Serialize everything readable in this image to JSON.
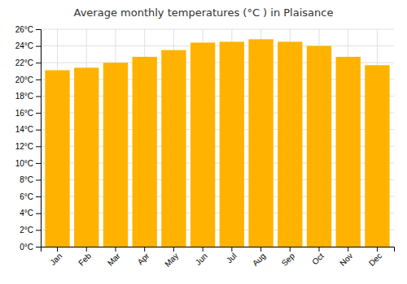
{
  "chart_data": {
    "type": "bar",
    "title": "Average monthly temperatures (°C ) in Plaisance",
    "categories": [
      "Jan",
      "Feb",
      "Mar",
      "Apr",
      "May",
      "Jun",
      "Jul",
      "Aug",
      "Sep",
      "Oct",
      "Nov",
      "Dec"
    ],
    "values": [
      21.1,
      21.4,
      22.0,
      22.7,
      23.5,
      24.4,
      24.5,
      24.8,
      24.5,
      24.0,
      22.7,
      21.7
    ],
    "color": "#FFB300",
    "ylim": [
      0,
      26
    ],
    "yticks": [
      {
        "value": 0,
        "label": "0°C"
      },
      {
        "value": 2,
        "label": "2°C"
      },
      {
        "value": 4,
        "label": "4°C"
      },
      {
        "value": 6,
        "label": "6°C"
      },
      {
        "value": 8,
        "label": "8°C"
      },
      {
        "value": 10,
        "label": "10°C"
      },
      {
        "value": 12,
        "label": "12°C"
      },
      {
        "value": 14,
        "label": "14°C"
      },
      {
        "value": 16,
        "label": "16°C"
      },
      {
        "value": 18,
        "label": "18°C"
      },
      {
        "value": 20,
        "label": "20°C"
      },
      {
        "value": 22,
        "label": "22°C"
      },
      {
        "value": 24,
        "label": "24°C"
      },
      {
        "value": 26,
        "label": "26°C"
      }
    ],
    "grid": true
  }
}
